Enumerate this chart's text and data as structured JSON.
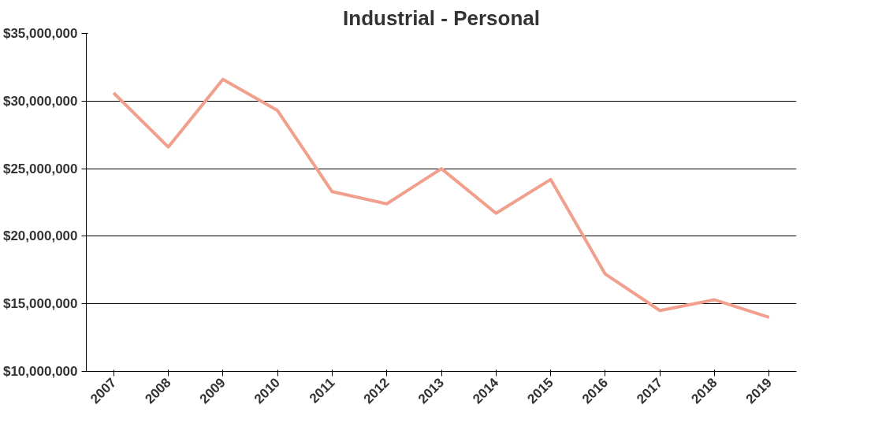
{
  "chart_data": {
    "type": "line",
    "title": "Industrial - Personal",
    "categories": [
      "2007",
      "2008",
      "2009",
      "2010",
      "2011",
      "2012",
      "2013",
      "2014",
      "2015",
      "2016",
      "2017",
      "2018",
      "2019"
    ],
    "series": [
      {
        "color": "#f0a08c",
        "values": [
          30600000,
          26600000,
          31600000,
          29300000,
          23300000,
          22400000,
          25000000,
          21700000,
          24200000,
          17200000,
          14500000,
          15300000,
          14000000
        ]
      }
    ],
    "ylim": [
      10000000,
      35000000
    ],
    "yticks": [
      {
        "value": 10000000,
        "label": "$10,000,000"
      },
      {
        "value": 15000000,
        "label": "$15,000,000"
      },
      {
        "value": 20000000,
        "label": "$20,000,000"
      },
      {
        "value": 25000000,
        "label": "$25,000,000"
      },
      {
        "value": 30000000,
        "label": "$30,000,000"
      },
      {
        "value": 35000000,
        "label": "$35,000,000"
      }
    ],
    "grid": "y",
    "marker": "none",
    "line_style": "solid"
  }
}
